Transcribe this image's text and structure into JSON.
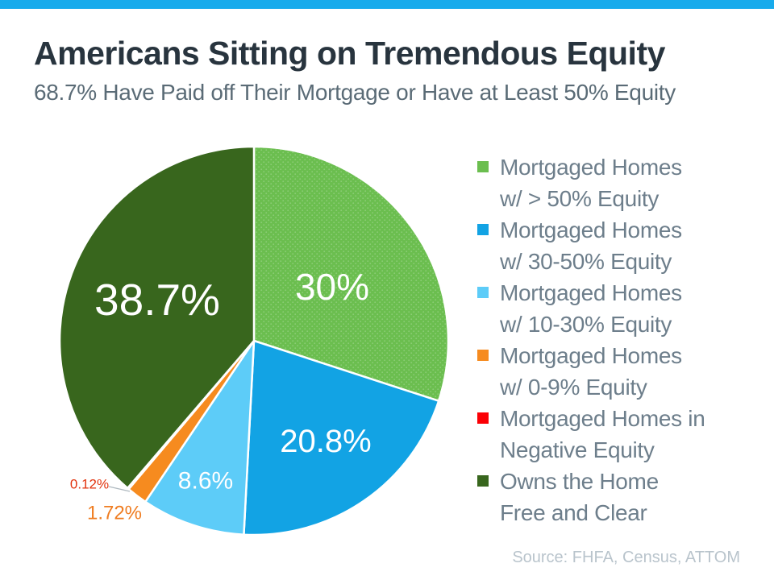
{
  "colors": {
    "top_bar": "#18ABEC",
    "title_text": "#28343E",
    "subtitle_text": "#5A6B76",
    "legend_text": "#6D7E8B",
    "source_text": "#B9C4CC"
  },
  "chart_data": {
    "type": "pie",
    "title": "Americans Sitting on Tremendous Equity",
    "subtitle": "68.7% Have Paid off Their Mortgage or Have at Least 50% Equity",
    "source": "Source: FHFA, Census, ATTOM",
    "legend_position": "right",
    "start_angle_deg": 0,
    "direction": "clockwise",
    "slices": [
      {
        "label": "Mortgaged Homes w/ > 50% Equity",
        "lines": [
          "Mortgaged Homes",
          "w/ > 50% Equity"
        ],
        "value": 30,
        "display": "30%",
        "color": "#6BBE4F",
        "label_color": "#FFFFFF",
        "label_position": "inside",
        "fill_texture": "dots"
      },
      {
        "label": "Mortgaged Homes w/ 30-50% Equity",
        "lines": [
          "Mortgaged Homes",
          "w/ 30-50% Equity"
        ],
        "value": 20.8,
        "display": "20.8%",
        "color": "#12A3E4",
        "label_color": "#FFFFFF",
        "label_position": "inside",
        "fill_texture": "solid"
      },
      {
        "label": "Mortgaged Homes w/ 10-30% Equity",
        "lines": [
          "Mortgaged Homes",
          "w/ 10-30% Equity"
        ],
        "value": 8.6,
        "display": "8.6%",
        "color": "#5DCCF8",
        "label_color": "#FFFFFF",
        "label_position": "inside",
        "fill_texture": "solid"
      },
      {
        "label": "Mortgaged Homes w/ 0-9% Equity",
        "lines": [
          "Mortgaged Homes",
          "w/ 0-9% Equity"
        ],
        "value": 1.72,
        "display": "1.72%",
        "color": "#F68B1F",
        "label_color": "#EF7D22",
        "label_position": "outside",
        "fill_texture": "solid"
      },
      {
        "label": "Mortgaged Homes in Negative Equity",
        "lines": [
          "Mortgaged Homes in",
          "Negative Equity"
        ],
        "value": 0.12,
        "display": "0.12%",
        "color": "#FB0005",
        "label_color": "#E2340F",
        "label_position": "outside-leader",
        "fill_texture": "solid"
      },
      {
        "label": "Owns the Home Free and Clear",
        "lines": [
          "Owns the Home",
          "Free and Clear"
        ],
        "value": 38.7,
        "display": "38.7%",
        "color": "#38661D",
        "label_color": "#FFFFFF",
        "label_position": "inside",
        "fill_texture": "solid"
      }
    ]
  }
}
